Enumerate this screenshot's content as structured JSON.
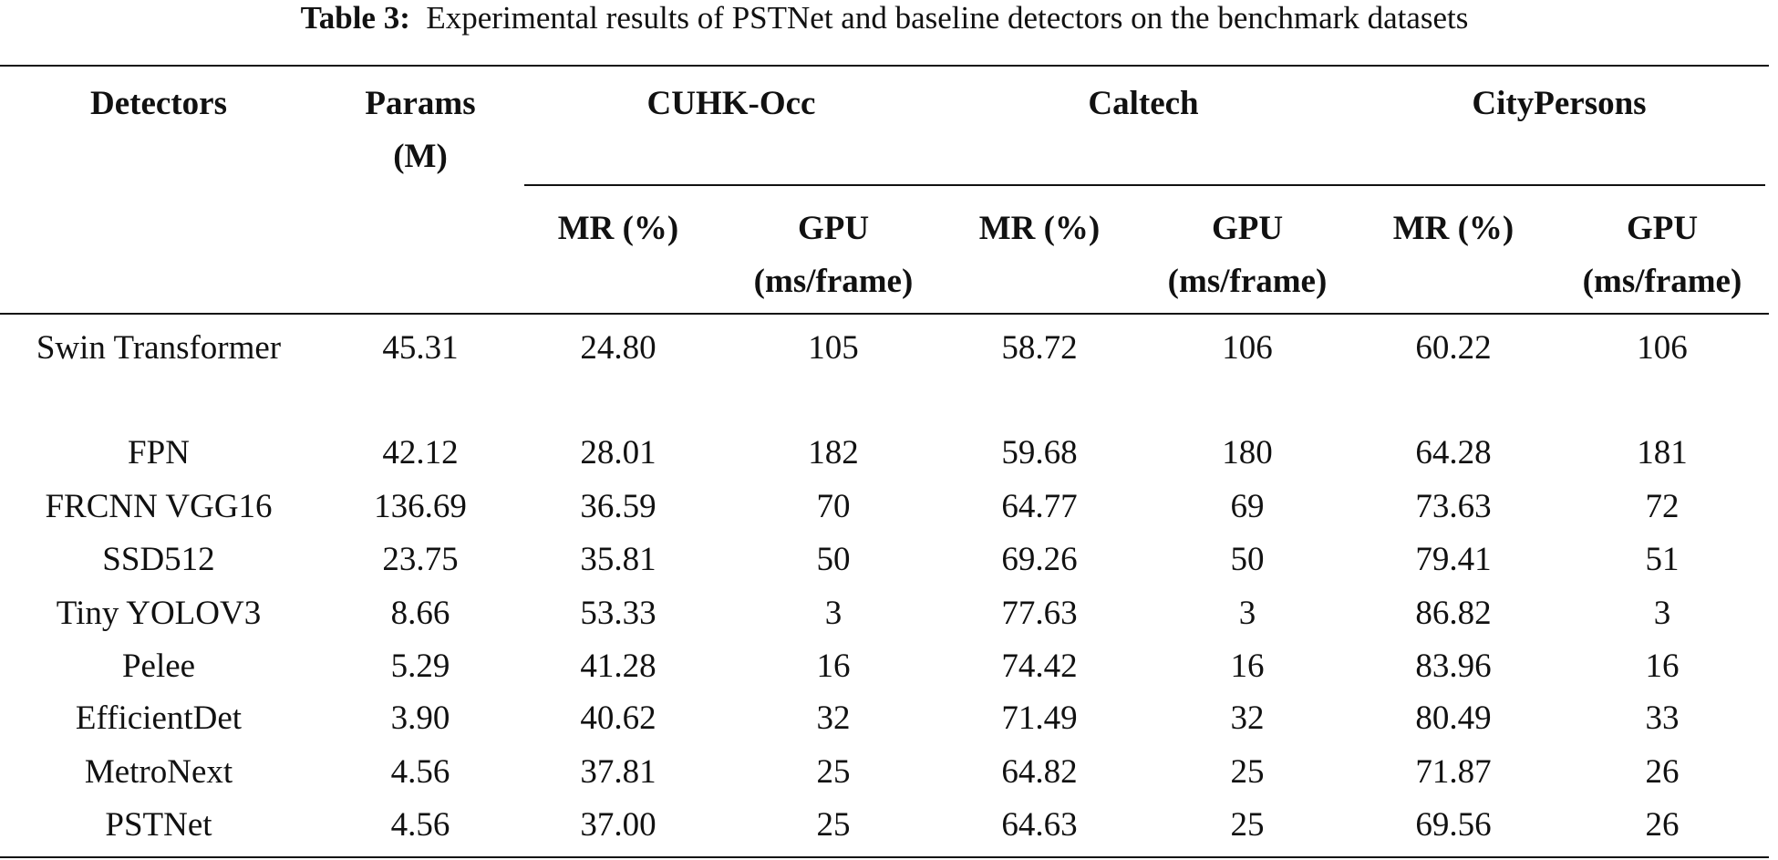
{
  "title": {
    "label": "Table 3:",
    "text": "Experimental results of PSTNet and baseline detectors on the benchmark datasets"
  },
  "table": {
    "header": [
      "Detectors",
      "Params (M)"
    ],
    "groups": [
      "CUHK-Occ",
      "Caltech",
      "CityPersons"
    ],
    "subheader": [
      "MR (%)",
      "GPU (ms/frame)",
      "MR (%)",
      "GPU (ms/frame)",
      "MR (%)",
      "GPU (ms/frame)"
    ],
    "rows": [
      [
        "Swin Transformer",
        "45.31",
        "24.80",
        "105",
        "58.72",
        "106",
        "60.22",
        "106"
      ],
      [
        "FPN",
        "42.12",
        "28.01",
        "182",
        "59.68",
        "180",
        "64.28",
        "181"
      ],
      [
        "FRCNN VGG16",
        "136.69",
        "36.59",
        "70",
        "64.77",
        "69",
        "73.63",
        "72"
      ],
      [
        "SSD512",
        "23.75",
        "35.81",
        "50",
        "69.26",
        "50",
        "79.41",
        "51"
      ],
      [
        "Tiny YOLOV3",
        "8.66",
        "53.33",
        "3",
        "77.63",
        "3",
        "86.82",
        "3"
      ],
      [
        "Pelee",
        "5.29",
        "41.28",
        "16",
        "74.42",
        "16",
        "83.96",
        "16"
      ],
      [
        "EfficientDet",
        "3.90",
        "40.62",
        "32",
        "71.49",
        "32",
        "80.49",
        "33"
      ],
      [
        "MetroNext",
        "4.56",
        "37.81",
        "25",
        "64.82",
        "25",
        "71.87",
        "26"
      ],
      [
        "PSTNet",
        "4.56",
        "37.00",
        "25",
        "64.63",
        "25",
        "69.56",
        "26"
      ]
    ]
  }
}
